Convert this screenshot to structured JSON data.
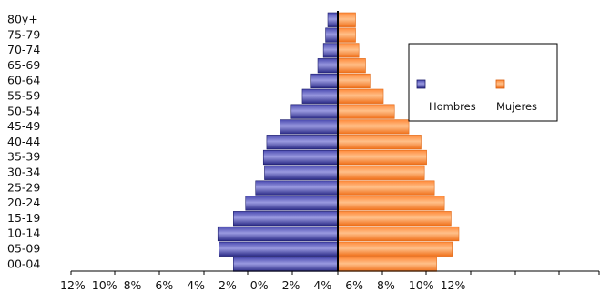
{
  "chart_data": {
    "type": "bar",
    "orientation": "horizontal",
    "layout": "population-pyramid",
    "title": "",
    "xlabel": "",
    "ylabel": "",
    "categories": [
      "80y+",
      "75-79",
      "70-74",
      "65-69",
      "60-64",
      "55-59",
      "50-54",
      "45-49",
      "40-44",
      "35-39",
      "30-34",
      "25-29",
      "20-24",
      "15-19",
      "10-14",
      "05-09",
      "00-04"
    ],
    "x_tick_labels": [
      "12%",
      "10%",
      "8%",
      "6%",
      "4%",
      "2%",
      "0%",
      "2%",
      "4%",
      "6%",
      "8%",
      "10%",
      "12%"
    ],
    "xlim": [
      -6,
      6
    ],
    "series": [
      {
        "name": "Hombres",
        "side": "left",
        "color": "#2e2e8f",
        "values": [
          0.45,
          0.55,
          0.65,
          0.9,
          1.2,
          1.6,
          2.1,
          2.6,
          3.2,
          3.35,
          3.3,
          3.7,
          4.15,
          4.7,
          5.4,
          5.35,
          4.7
        ]
      },
      {
        "name": "Mujeres",
        "side": "right",
        "color": "#f57a25",
        "values": [
          0.8,
          0.8,
          0.95,
          1.25,
          1.45,
          2.05,
          2.55,
          3.2,
          3.75,
          4.0,
          3.9,
          4.35,
          4.8,
          5.1,
          5.45,
          5.15,
          4.45
        ]
      }
    ],
    "legend": {
      "position": "right"
    },
    "grid": false
  }
}
